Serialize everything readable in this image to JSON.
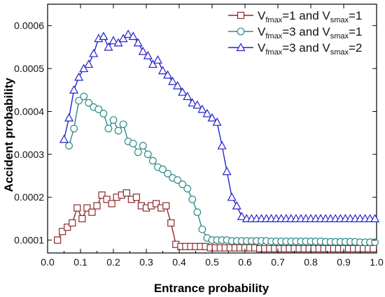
{
  "chart_data": {
    "type": "line",
    "xlabel": "Entrance probability",
    "ylabel": "Accident probability",
    "xlim": [
      0.0,
      1.0
    ],
    "ylim": [
      7e-05,
      0.00065
    ],
    "x_ticks": [
      "0.0",
      "0.1",
      "0.2",
      "0.3",
      "0.4",
      "0.5",
      "0.6",
      "0.7",
      "0.8",
      "0.9",
      "1.0"
    ],
    "y_ticks": [
      "0.0001",
      "0.0002",
      "0.0003",
      "0.0004",
      "0.0005",
      "0.0006"
    ],
    "x_tick_values": [
      0.0,
      0.1,
      0.2,
      0.3,
      0.4,
      0.5,
      0.6,
      0.7,
      0.8,
      0.9,
      1.0
    ],
    "y_tick_values": [
      0.0001,
      0.0002,
      0.0003,
      0.0004,
      0.0005,
      0.0006
    ],
    "grid": false,
    "legend_position": "top-right",
    "series": [
      {
        "name_parts": [
          "V",
          "fmax",
          "=1 and V",
          "smax",
          "=1"
        ],
        "color": "#8b2a2a",
        "marker": "square",
        "x": [
          0.03,
          0.045,
          0.06,
          0.075,
          0.09,
          0.105,
          0.12,
          0.135,
          0.15,
          0.165,
          0.18,
          0.195,
          0.21,
          0.225,
          0.24,
          0.255,
          0.27,
          0.285,
          0.3,
          0.315,
          0.33,
          0.345,
          0.36,
          0.375,
          0.39,
          0.405,
          0.42,
          0.435,
          0.45,
          0.465,
          0.48,
          0.495,
          0.51,
          0.525,
          0.54,
          0.555,
          0.57,
          0.585,
          0.6,
          0.615,
          0.63,
          0.645,
          0.66,
          0.675,
          0.69,
          0.705,
          0.72,
          0.735,
          0.75,
          0.765,
          0.78,
          0.795,
          0.81,
          0.825,
          0.84,
          0.855,
          0.87,
          0.885,
          0.9,
          0.915,
          0.93,
          0.945,
          0.96,
          0.975,
          0.99
        ],
        "y": [
          0.0001,
          0.00012,
          0.00013,
          0.00014,
          0.000175,
          0.00015,
          0.000175,
          0.000165,
          0.00018,
          0.000205,
          0.000195,
          0.000185,
          0.0002,
          0.000205,
          0.00021,
          0.000195,
          0.0002,
          0.00018,
          0.000175,
          0.00018,
          0.000185,
          0.000175,
          0.00018,
          0.00014,
          9e-05,
          8.5e-05,
          8.5e-05,
          8.5e-05,
          8.5e-05,
          8.5e-05,
          8.5e-05,
          8.2e-05,
          8.2e-05,
          8.2e-05,
          8.2e-05,
          8.2e-05,
          8.2e-05,
          8.2e-05,
          8.2e-05,
          8.2e-05,
          8.2e-05,
          8e-05,
          8e-05,
          8e-05,
          8e-05,
          8e-05,
          8e-05,
          8e-05,
          8e-05,
          8e-05,
          8e-05,
          8e-05,
          8e-05,
          8e-05,
          8e-05,
          8e-05,
          8e-05,
          8e-05,
          8e-05,
          8e-05,
          8e-05,
          8e-05,
          8e-05,
          8e-05,
          8e-05
        ]
      },
      {
        "name_parts": [
          "V",
          "fmax",
          "=3 and V",
          "smax",
          "=1"
        ],
        "color": "#2a8a86",
        "marker": "circle",
        "x": [
          0.065,
          0.08,
          0.095,
          0.11,
          0.125,
          0.14,
          0.155,
          0.17,
          0.185,
          0.2,
          0.215,
          0.23,
          0.245,
          0.26,
          0.275,
          0.29,
          0.305,
          0.32,
          0.335,
          0.35,
          0.365,
          0.38,
          0.395,
          0.41,
          0.425,
          0.44,
          0.455,
          0.47,
          0.485,
          0.5,
          0.515,
          0.53,
          0.545,
          0.56,
          0.575,
          0.59,
          0.605,
          0.62,
          0.635,
          0.65,
          0.665,
          0.68,
          0.695,
          0.71,
          0.725,
          0.74,
          0.755,
          0.77,
          0.785,
          0.8,
          0.815,
          0.83,
          0.845,
          0.86,
          0.875,
          0.89,
          0.905,
          0.92,
          0.935,
          0.95,
          0.965,
          0.98,
          0.995
        ],
        "y": [
          0.00032,
          0.00036,
          0.000425,
          0.000435,
          0.00042,
          0.00041,
          0.000405,
          0.000395,
          0.00036,
          0.00038,
          0.000355,
          0.00037,
          0.00033,
          0.000325,
          0.000305,
          0.00032,
          0.0003,
          0.000285,
          0.00027,
          0.000265,
          0.000255,
          0.000245,
          0.00024,
          0.00023,
          0.00022,
          0.000195,
          0.000165,
          0.000125,
          0.000105,
          0.0001,
          0.0001,
          0.0001,
          0.0001,
          9.8e-05,
          9.8e-05,
          9.8e-05,
          9.8e-05,
          9.8e-05,
          9.8e-05,
          9.8e-05,
          9.8e-05,
          9.7e-05,
          9.7e-05,
          9.7e-05,
          9.7e-05,
          9.7e-05,
          9.7e-05,
          9.7e-05,
          9.7e-05,
          9.7e-05,
          9.7e-05,
          9.7e-05,
          9.6e-05,
          9.6e-05,
          9.6e-05,
          9.6e-05,
          9.6e-05,
          9.6e-05,
          9.6e-05,
          9.5e-05,
          9.5e-05,
          9.5e-05,
          9.5e-05
        ]
      },
      {
        "name_parts": [
          "V",
          "fmax",
          "=3 and V",
          "smax",
          "=2"
        ],
        "color": "#2222cc",
        "marker": "triangle",
        "x": [
          0.05,
          0.065,
          0.08,
          0.095,
          0.11,
          0.125,
          0.14,
          0.155,
          0.17,
          0.185,
          0.2,
          0.215,
          0.23,
          0.245,
          0.26,
          0.275,
          0.29,
          0.305,
          0.32,
          0.335,
          0.35,
          0.365,
          0.38,
          0.395,
          0.41,
          0.425,
          0.44,
          0.455,
          0.47,
          0.485,
          0.5,
          0.515,
          0.53,
          0.545,
          0.56,
          0.575,
          0.59,
          0.605,
          0.62,
          0.635,
          0.65,
          0.665,
          0.68,
          0.695,
          0.71,
          0.725,
          0.74,
          0.755,
          0.77,
          0.785,
          0.8,
          0.815,
          0.83,
          0.845,
          0.86,
          0.875,
          0.89,
          0.905,
          0.92,
          0.935,
          0.95,
          0.965,
          0.98,
          0.995
        ],
        "y": [
          0.000335,
          0.000385,
          0.00045,
          0.00048,
          0.0005,
          0.00051,
          0.000535,
          0.00057,
          0.000575,
          0.00055,
          0.000565,
          0.00056,
          0.00057,
          0.00058,
          0.000575,
          0.00056,
          0.00054,
          0.00053,
          0.00051,
          0.00052,
          0.000495,
          0.000485,
          0.00047,
          0.00046,
          0.000445,
          0.000435,
          0.00042,
          0.000415,
          0.000405,
          0.000395,
          0.000385,
          0.000375,
          0.00032,
          0.00026,
          0.0002,
          0.00018,
          0.000155,
          0.00015,
          0.00015,
          0.00015,
          0.00015,
          0.00015,
          0.00015,
          0.00015,
          0.00015,
          0.00015,
          0.00015,
          0.00015,
          0.00015,
          0.00015,
          0.00015,
          0.00015,
          0.00015,
          0.00015,
          0.00015,
          0.00015,
          0.00015,
          0.00015,
          0.00015,
          0.00015,
          0.00015,
          0.00015,
          0.00015,
          0.00015
        ]
      }
    ]
  }
}
